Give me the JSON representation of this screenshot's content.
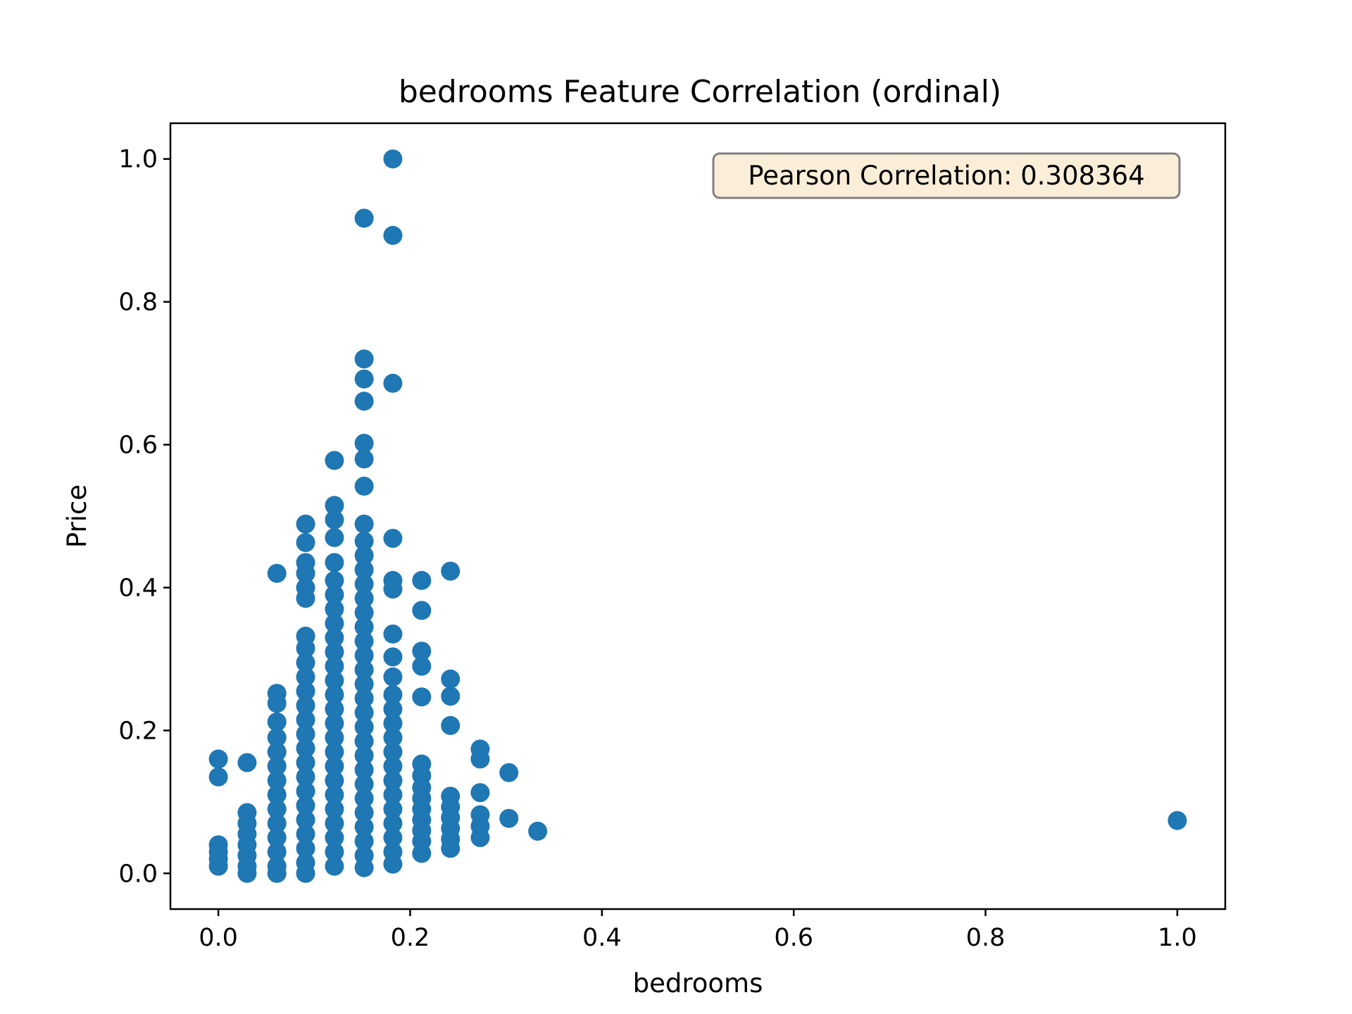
{
  "chart_data": {
    "type": "scatter",
    "title": "bedrooms Feature Correlation (ordinal)",
    "xlabel": "bedrooms",
    "ylabel": "Price",
    "xlim": [
      -0.05,
      1.05
    ],
    "ylim": [
      -0.05,
      1.05
    ],
    "xticks": [
      0.0,
      0.2,
      0.4,
      0.6,
      0.8,
      1.0
    ],
    "yticks": [
      0.0,
      0.2,
      0.4,
      0.6,
      0.8,
      1.0
    ],
    "xtick_labels": [
      "0.0",
      "0.2",
      "0.4",
      "0.6",
      "0.8",
      "1.0"
    ],
    "ytick_labels": [
      "0.0",
      "0.2",
      "0.4",
      "0.6",
      "0.8",
      "1.0"
    ],
    "grid": false,
    "annotation": "Pearson Correlation: 0.308364",
    "annotation_placement": "top-right",
    "marker_color": "#1f77b4",
    "annotation_bg": "#f5deb3",
    "series": [
      {
        "points": [
          [
            0.0,
            0.16
          ],
          [
            0.0,
            0.135
          ],
          [
            0.0,
            0.04
          ],
          [
            0.0,
            0.03
          ],
          [
            0.0,
            0.02
          ],
          [
            0.0,
            0.01
          ],
          [
            0.03,
            0.155
          ],
          [
            0.03,
            0.085
          ],
          [
            0.03,
            0.07
          ],
          [
            0.03,
            0.055
          ],
          [
            0.03,
            0.04
          ],
          [
            0.03,
            0.025
          ],
          [
            0.03,
            0.01
          ],
          [
            0.03,
            0.0
          ],
          [
            0.061,
            0.42
          ],
          [
            0.061,
            0.252
          ],
          [
            0.061,
            0.238
          ],
          [
            0.061,
            0.212
          ],
          [
            0.061,
            0.19
          ],
          [
            0.061,
            0.17
          ],
          [
            0.061,
            0.15
          ],
          [
            0.061,
            0.13
          ],
          [
            0.061,
            0.11
          ],
          [
            0.061,
            0.09
          ],
          [
            0.061,
            0.07
          ],
          [
            0.061,
            0.05
          ],
          [
            0.061,
            0.03
          ],
          [
            0.061,
            0.01
          ],
          [
            0.061,
            0.0
          ],
          [
            0.091,
            0.489
          ],
          [
            0.091,
            0.463
          ],
          [
            0.091,
            0.435
          ],
          [
            0.091,
            0.42
          ],
          [
            0.091,
            0.4
          ],
          [
            0.091,
            0.385
          ],
          [
            0.091,
            0.332
          ],
          [
            0.091,
            0.315
          ],
          [
            0.091,
            0.295
          ],
          [
            0.091,
            0.275
          ],
          [
            0.091,
            0.255
          ],
          [
            0.091,
            0.235
          ],
          [
            0.091,
            0.215
          ],
          [
            0.091,
            0.195
          ],
          [
            0.091,
            0.175
          ],
          [
            0.091,
            0.155
          ],
          [
            0.091,
            0.135
          ],
          [
            0.091,
            0.115
          ],
          [
            0.091,
            0.095
          ],
          [
            0.091,
            0.075
          ],
          [
            0.091,
            0.055
          ],
          [
            0.091,
            0.035
          ],
          [
            0.091,
            0.015
          ],
          [
            0.091,
            0.0
          ],
          [
            0.121,
            0.578
          ],
          [
            0.121,
            0.515
          ],
          [
            0.121,
            0.495
          ],
          [
            0.121,
            0.47
          ],
          [
            0.121,
            0.435
          ],
          [
            0.121,
            0.41
          ],
          [
            0.121,
            0.39
          ],
          [
            0.121,
            0.37
          ],
          [
            0.121,
            0.35
          ],
          [
            0.121,
            0.33
          ],
          [
            0.121,
            0.31
          ],
          [
            0.121,
            0.29
          ],
          [
            0.121,
            0.27
          ],
          [
            0.121,
            0.25
          ],
          [
            0.121,
            0.23
          ],
          [
            0.121,
            0.21
          ],
          [
            0.121,
            0.19
          ],
          [
            0.121,
            0.17
          ],
          [
            0.121,
            0.15
          ],
          [
            0.121,
            0.13
          ],
          [
            0.121,
            0.11
          ],
          [
            0.121,
            0.09
          ],
          [
            0.121,
            0.07
          ],
          [
            0.121,
            0.05
          ],
          [
            0.121,
            0.03
          ],
          [
            0.121,
            0.01
          ],
          [
            0.152,
            0.917
          ],
          [
            0.152,
            0.72
          ],
          [
            0.152,
            0.692
          ],
          [
            0.152,
            0.661
          ],
          [
            0.152,
            0.602
          ],
          [
            0.152,
            0.58
          ],
          [
            0.152,
            0.542
          ],
          [
            0.152,
            0.489
          ],
          [
            0.152,
            0.465
          ],
          [
            0.152,
            0.445
          ],
          [
            0.152,
            0.425
          ],
          [
            0.152,
            0.405
          ],
          [
            0.152,
            0.385
          ],
          [
            0.152,
            0.365
          ],
          [
            0.152,
            0.345
          ],
          [
            0.152,
            0.325
          ],
          [
            0.152,
            0.305
          ],
          [
            0.152,
            0.285
          ],
          [
            0.152,
            0.265
          ],
          [
            0.152,
            0.245
          ],
          [
            0.152,
            0.225
          ],
          [
            0.152,
            0.205
          ],
          [
            0.152,
            0.185
          ],
          [
            0.152,
            0.165
          ],
          [
            0.152,
            0.145
          ],
          [
            0.152,
            0.125
          ],
          [
            0.152,
            0.105
          ],
          [
            0.152,
            0.085
          ],
          [
            0.152,
            0.065
          ],
          [
            0.152,
            0.045
          ],
          [
            0.152,
            0.025
          ],
          [
            0.152,
            0.008
          ],
          [
            0.182,
            1.0
          ],
          [
            0.182,
            0.893
          ],
          [
            0.182,
            0.686
          ],
          [
            0.182,
            0.469
          ],
          [
            0.182,
            0.41
          ],
          [
            0.182,
            0.398
          ],
          [
            0.182,
            0.335
          ],
          [
            0.182,
            0.303
          ],
          [
            0.182,
            0.275
          ],
          [
            0.182,
            0.25
          ],
          [
            0.182,
            0.23
          ],
          [
            0.182,
            0.21
          ],
          [
            0.182,
            0.19
          ],
          [
            0.182,
            0.17
          ],
          [
            0.182,
            0.15
          ],
          [
            0.182,
            0.13
          ],
          [
            0.182,
            0.11
          ],
          [
            0.182,
            0.09
          ],
          [
            0.182,
            0.07
          ],
          [
            0.182,
            0.05
          ],
          [
            0.182,
            0.03
          ],
          [
            0.182,
            0.013
          ],
          [
            0.212,
            0.41
          ],
          [
            0.212,
            0.368
          ],
          [
            0.212,
            0.311
          ],
          [
            0.212,
            0.29
          ],
          [
            0.212,
            0.247
          ],
          [
            0.212,
            0.153
          ],
          [
            0.212,
            0.137
          ],
          [
            0.212,
            0.12
          ],
          [
            0.212,
            0.105
          ],
          [
            0.212,
            0.09
          ],
          [
            0.212,
            0.075
          ],
          [
            0.212,
            0.06
          ],
          [
            0.212,
            0.045
          ],
          [
            0.212,
            0.028
          ],
          [
            0.242,
            0.423
          ],
          [
            0.242,
            0.272
          ],
          [
            0.242,
            0.248
          ],
          [
            0.242,
            0.207
          ],
          [
            0.242,
            0.108
          ],
          [
            0.242,
            0.093
          ],
          [
            0.242,
            0.078
          ],
          [
            0.242,
            0.063
          ],
          [
            0.242,
            0.048
          ],
          [
            0.242,
            0.035
          ],
          [
            0.273,
            0.174
          ],
          [
            0.273,
            0.16
          ],
          [
            0.273,
            0.113
          ],
          [
            0.273,
            0.082
          ],
          [
            0.273,
            0.066
          ],
          [
            0.273,
            0.05
          ],
          [
            0.303,
            0.141
          ],
          [
            0.303,
            0.077
          ],
          [
            0.333,
            0.059
          ],
          [
            1.0,
            0.074
          ]
        ]
      }
    ]
  }
}
